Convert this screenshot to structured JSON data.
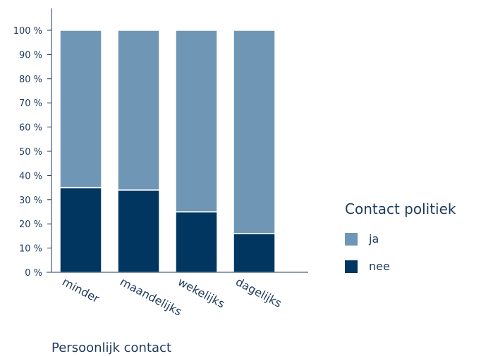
{
  "chart_data": {
    "type": "bar",
    "stacked": true,
    "categories": [
      "minder",
      "maandelijks",
      "wekelijks",
      "dagelijks"
    ],
    "series": [
      {
        "name": "nee",
        "values": [
          35,
          34,
          25,
          16
        ]
      },
      {
        "name": "ja",
        "values": [
          65,
          66,
          75,
          84
        ]
      }
    ],
    "xlabel": "Persoonlijk contact",
    "ylabel": "",
    "ylim": [
      0,
      100
    ],
    "yticks": [
      "0 %",
      "10 %",
      "20 %",
      "30 %",
      "40 %",
      "50 %",
      "60 %",
      "70 %",
      "80 %",
      "90 %",
      "100 %"
    ],
    "legend": {
      "title": "Contact politiek",
      "placement": "right"
    },
    "colors": {
      "nee": "#003660",
      "ja": "#7096b5"
    },
    "grid": false
  }
}
